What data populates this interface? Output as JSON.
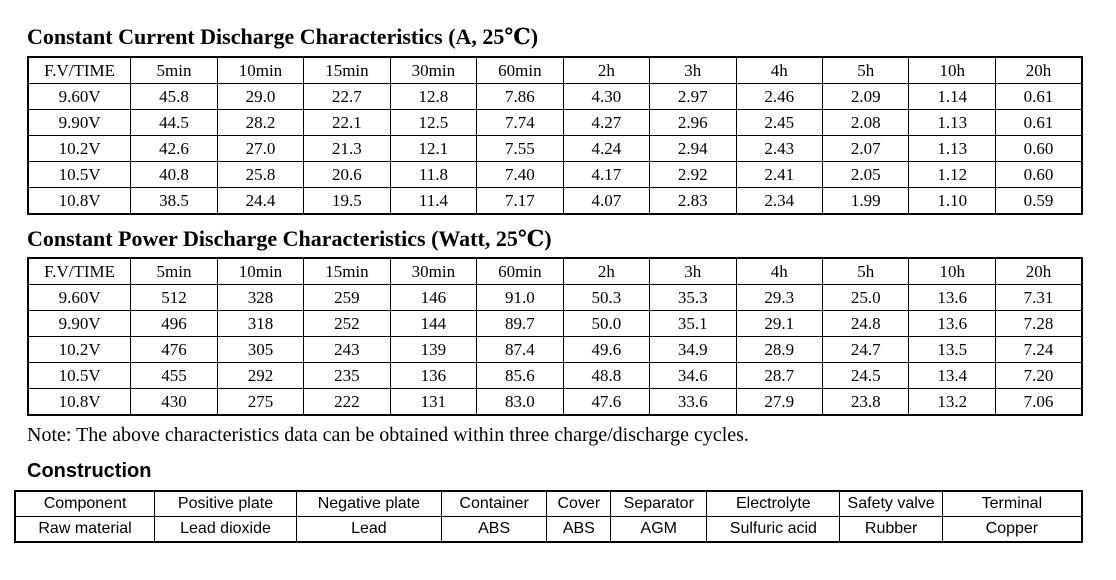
{
  "page": {
    "background_color": "#ffffff",
    "text_color": "#000000"
  },
  "current_table": {
    "title": "Constant Current Discharge Characteristics (A, 25℃)",
    "headers": [
      "F.V/TIME",
      "5min",
      "10min",
      "15min",
      "30min",
      "60min",
      "2h",
      "3h",
      "4h",
      "5h",
      "10h",
      "20h"
    ],
    "rows": [
      [
        "9.60V",
        "45.8",
        "29.0",
        "22.7",
        "12.8",
        "7.86",
        "4.30",
        "2.97",
        "2.46",
        "2.09",
        "1.14",
        "0.61"
      ],
      [
        "9.90V",
        "44.5",
        "28.2",
        "22.1",
        "12.5",
        "7.74",
        "4.27",
        "2.96",
        "2.45",
        "2.08",
        "1.13",
        "0.61"
      ],
      [
        "10.2V",
        "42.6",
        "27.0",
        "21.3",
        "12.1",
        "7.55",
        "4.24",
        "2.94",
        "2.43",
        "2.07",
        "1.13",
        "0.60"
      ],
      [
        "10.5V",
        "40.8",
        "25.8",
        "20.6",
        "11.8",
        "7.40",
        "4.17",
        "2.92",
        "2.41",
        "2.05",
        "1.12",
        "0.60"
      ],
      [
        "10.8V",
        "38.5",
        "24.4",
        "19.5",
        "11.4",
        "7.17",
        "4.07",
        "2.83",
        "2.34",
        "1.99",
        "1.10",
        "0.59"
      ]
    ]
  },
  "power_table": {
    "title": "Constant Power Discharge Characteristics (Watt, 25℃)",
    "headers": [
      "F.V/TIME",
      "5min",
      "10min",
      "15min",
      "30min",
      "60min",
      "2h",
      "3h",
      "4h",
      "5h",
      "10h",
      "20h"
    ],
    "rows": [
      [
        "9.60V",
        "512",
        "328",
        "259",
        "146",
        "91.0",
        "50.3",
        "35.3",
        "29.3",
        "25.0",
        "13.6",
        "7.31"
      ],
      [
        "9.90V",
        "496",
        "318",
        "252",
        "144",
        "89.7",
        "50.0",
        "35.1",
        "29.1",
        "24.8",
        "13.6",
        "7.28"
      ],
      [
        "10.2V",
        "476",
        "305",
        "243",
        "139",
        "87.4",
        "49.6",
        "34.9",
        "28.9",
        "24.7",
        "13.5",
        "7.24"
      ],
      [
        "10.5V",
        "455",
        "292",
        "235",
        "136",
        "85.6",
        "48.8",
        "34.6",
        "28.7",
        "24.5",
        "13.4",
        "7.20"
      ],
      [
        "10.8V",
        "430",
        "275",
        "222",
        "131",
        "83.0",
        "47.6",
        "33.6",
        "27.9",
        "23.8",
        "13.2",
        "7.06"
      ]
    ]
  },
  "note": "Note: The above characteristics data can be obtained within three charge/discharge cycles.",
  "construction": {
    "title": "Construction",
    "rows": [
      [
        "Component",
        "Positive plate",
        "Negative plate",
        "Container",
        "Cover",
        "Separator",
        "Electrolyte",
        "Safety valve",
        "Terminal"
      ],
      [
        "Raw material",
        "Lead dioxide",
        "Lead",
        "ABS",
        "ABS",
        "AGM",
        "Sulfuric acid",
        "Rubber",
        "Copper"
      ]
    ]
  }
}
